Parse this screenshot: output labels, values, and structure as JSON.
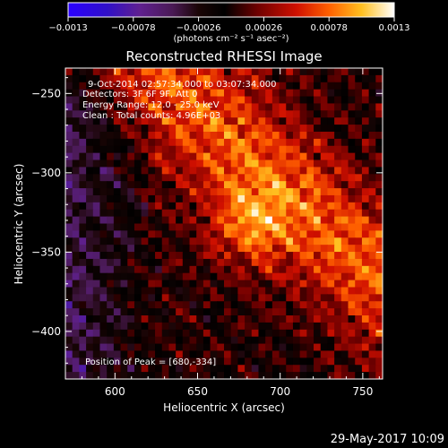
{
  "chart_data": {
    "type": "heatmap",
    "title": "Reconstructed RHESSI Image",
    "xlabel": "Heliocentric X (arcsec)",
    "ylabel": "Heliocentric Y (arcsec)",
    "xlim": [
      570,
      762
    ],
    "ylim": [
      -430,
      -234
    ],
    "x_ticks": [
      600,
      650,
      700,
      750
    ],
    "y_ticks": [
      -250,
      -300,
      -350,
      -400
    ],
    "colorbar": {
      "range": [
        -0.0013,
        0.0013
      ],
      "ticks": [
        -0.0013,
        -0.00078,
        -0.00026,
        0.00026,
        0.00078,
        0.0013
      ],
      "tick_labels": [
        "−0.0013",
        "−0.00078",
        "−0.00026",
        "0.00026",
        "0.00078",
        "0.0013"
      ],
      "unit_label": "(photons cm⁻² s⁻¹ asec⁻²)"
    },
    "annotations": [
      "9-Oct-2014 02:57:34.000 to 03:07:34.000",
      "Detectors: 3F 6F 9F, Att 0",
      "Energy Range: 12.0 - 25.0 keV",
      "Clean : Total counts: 4.96E+03"
    ],
    "peak_label": "Position of Peak = [680,-334]",
    "peak": [
      680,
      -334
    ],
    "grid": false
  },
  "timestamp": "29-May-2017 10:09"
}
